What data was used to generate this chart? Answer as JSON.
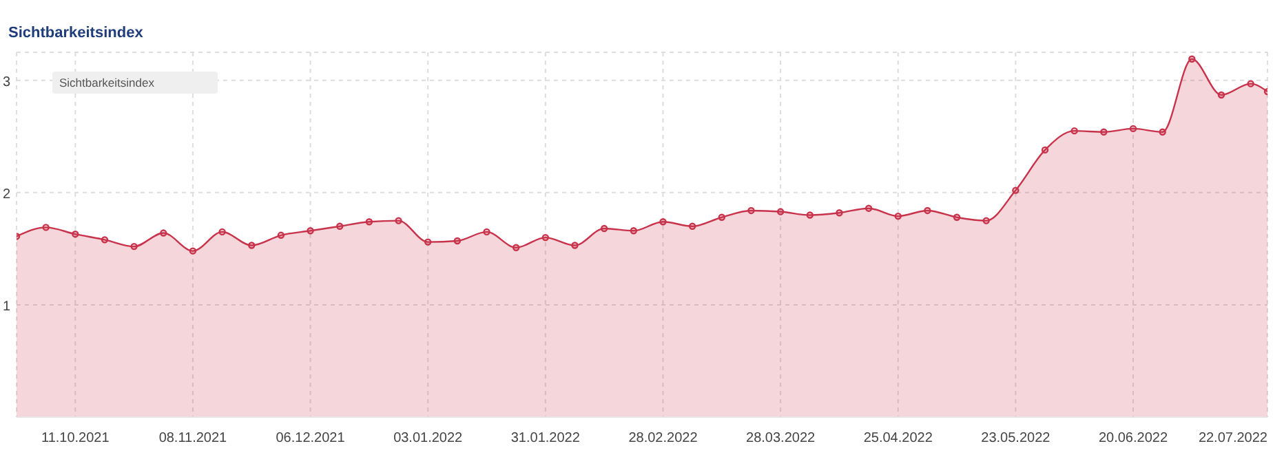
{
  "chart_data": {
    "type": "area",
    "title": "Sichtbarkeitsindex",
    "annotations": [
      "Sichtbarkeitsindex"
    ],
    "grid": true,
    "marker": "circle",
    "line_style": "solid",
    "x": [
      "2021-09-27",
      "2021-10-04",
      "2021-10-11",
      "2021-10-18",
      "2021-10-25",
      "2021-11-01",
      "2021-11-08",
      "2021-11-15",
      "2021-11-22",
      "2021-11-29",
      "2021-12-06",
      "2021-12-13",
      "2021-12-20",
      "2021-12-27",
      "2022-01-03",
      "2022-01-10",
      "2022-01-17",
      "2022-01-24",
      "2022-01-31",
      "2022-02-07",
      "2022-02-14",
      "2022-02-21",
      "2022-02-28",
      "2022-03-07",
      "2022-03-14",
      "2022-03-21",
      "2022-03-28",
      "2022-04-04",
      "2022-04-11",
      "2022-04-18",
      "2022-04-25",
      "2022-05-02",
      "2022-05-09",
      "2022-05-16",
      "2022-05-23",
      "2022-05-30",
      "2022-06-06",
      "2022-06-13",
      "2022-06-20",
      "2022-06-27",
      "2022-07-04",
      "2022-07-11",
      "2022-07-18",
      "2022-07-22"
    ],
    "series": [
      {
        "color": "#c8324a",
        "values": [
          1.61,
          1.69,
          1.63,
          1.58,
          1.52,
          1.64,
          1.48,
          1.65,
          1.53,
          1.62,
          1.66,
          1.7,
          1.74,
          1.75,
          1.56,
          1.57,
          1.65,
          1.51,
          1.6,
          1.53,
          1.68,
          1.66,
          1.74,
          1.7,
          1.78,
          1.84,
          1.83,
          1.8,
          1.82,
          1.86,
          1.79,
          1.84,
          1.78,
          1.75,
          2.02,
          2.38,
          2.55,
          2.54,
          2.57,
          2.54,
          3.19,
          2.87,
          2.97,
          2.9
        ]
      }
    ],
    "xlim": [
      "2021-09-27",
      "2022-07-22"
    ],
    "xticks": [
      {
        "value": "2021-10-11",
        "label": "11.10.2021"
      },
      {
        "value": "2021-11-08",
        "label": "08.11.2021"
      },
      {
        "value": "2021-12-06",
        "label": "06.12.2021"
      },
      {
        "value": "2022-01-03",
        "label": "03.01.2022"
      },
      {
        "value": "2022-01-31",
        "label": "31.01.2022"
      },
      {
        "value": "2022-02-28",
        "label": "28.02.2022"
      },
      {
        "value": "2022-03-28",
        "label": "28.03.2022"
      },
      {
        "value": "2022-04-25",
        "label": "25.04.2022"
      },
      {
        "value": "2022-05-23",
        "label": "23.05.2022"
      },
      {
        "value": "2022-06-20",
        "label": "20.06.2022"
      },
      {
        "value": "2022-07-22",
        "label": "22.07.2022"
      }
    ],
    "ylim": [
      0,
      3.25
    ],
    "yticks": [
      1,
      2,
      3
    ]
  }
}
